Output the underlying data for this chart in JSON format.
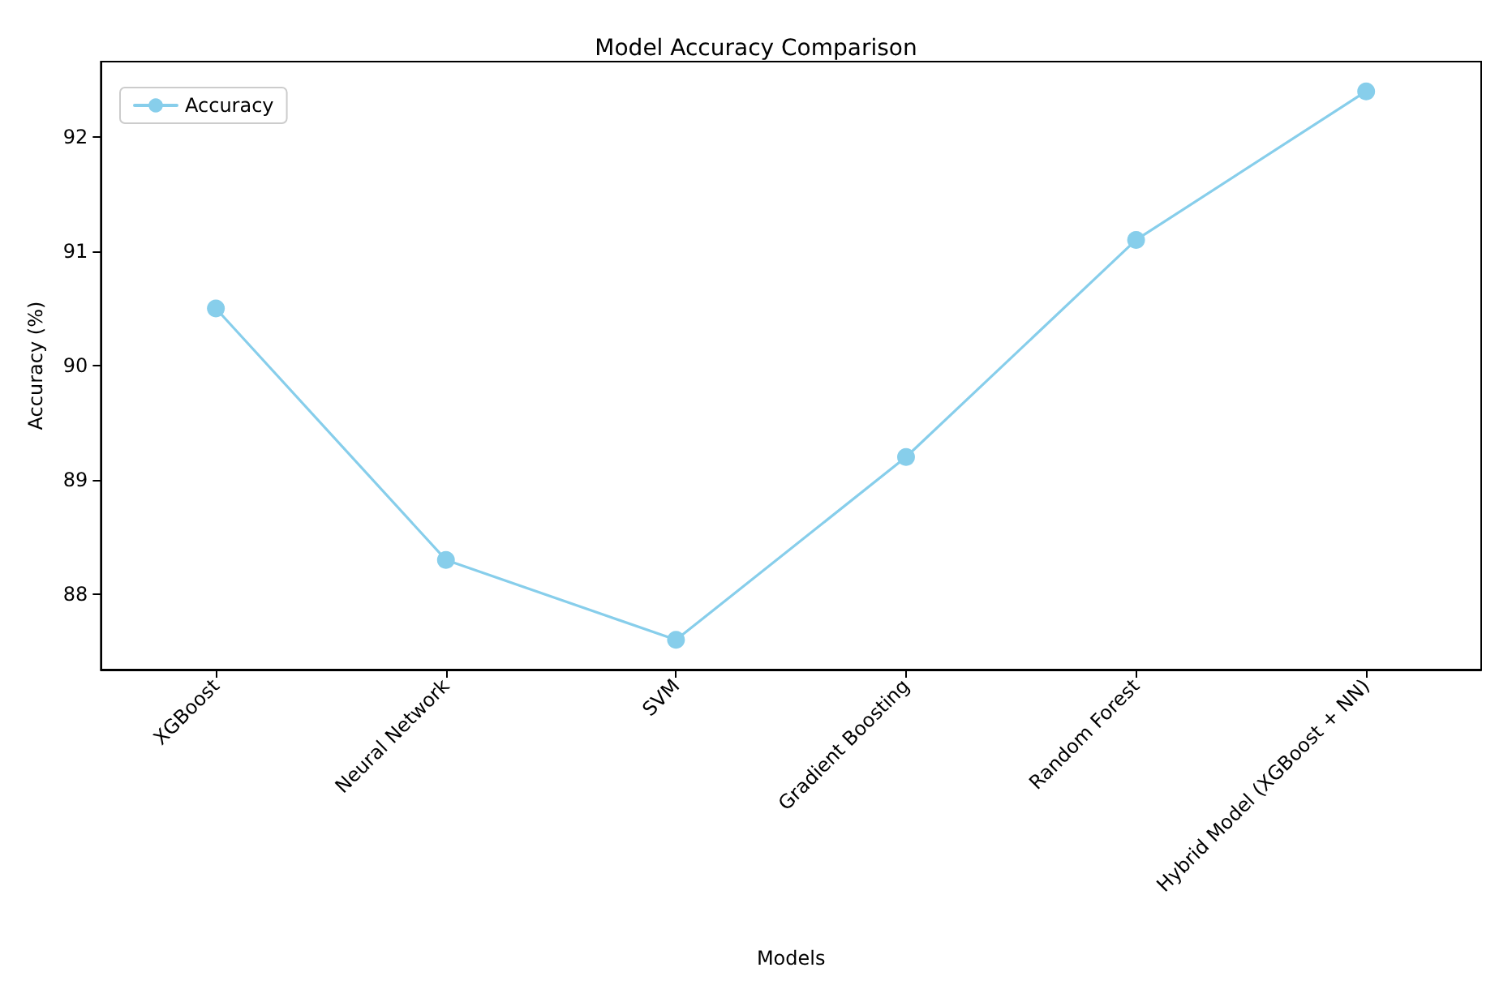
{
  "chart_data": {
    "type": "line",
    "title": "Model Accuracy Comparison",
    "xlabel": "Models",
    "ylabel": "Accuracy (%)",
    "categories": [
      "XGBoost",
      "Neural Network",
      "SVM",
      "Gradient Boosting",
      "Random Forest",
      "Hybrid Model (XGBoost + NN)"
    ],
    "series": [
      {
        "name": "Accuracy",
        "color": "#87ceeb",
        "values": [
          90.5,
          88.3,
          87.6,
          89.2,
          91.1,
          92.4
        ]
      }
    ],
    "ylim": [
      87.34,
      92.66
    ],
    "yticks": [
      88,
      89,
      90,
      91,
      92
    ],
    "grid": false,
    "legend": "top left",
    "marker": "circle",
    "line_style": "solid"
  }
}
